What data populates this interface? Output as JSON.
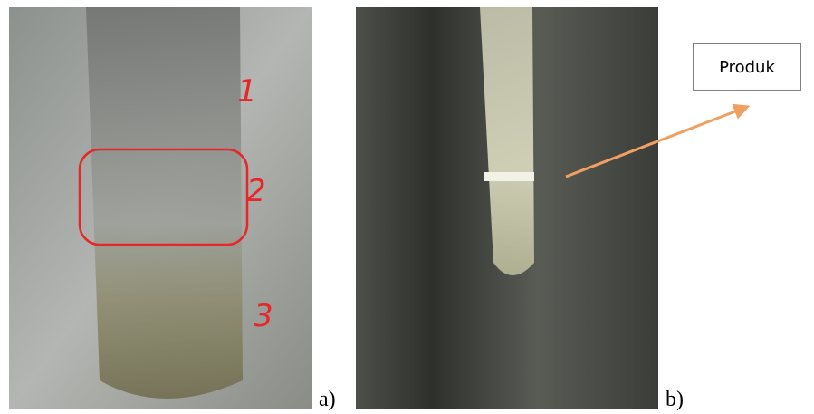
{
  "panels": [
    {
      "label": "a)",
      "annotations": [
        "1",
        "2",
        "3"
      ]
    },
    {
      "label": "b)",
      "callout": "Produk"
    }
  ]
}
